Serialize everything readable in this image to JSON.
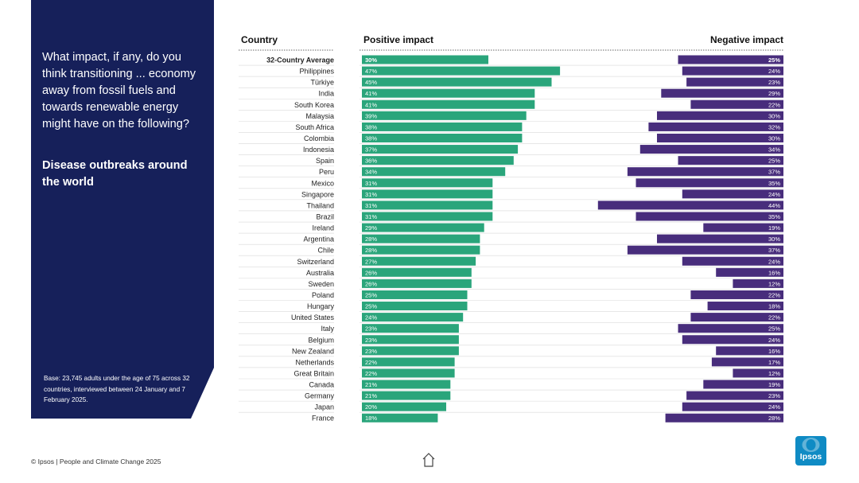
{
  "panel": {
    "question": "What impact, if any, do you think transitioning ... economy away from fossil fuels and towards renewable energy might have on the following?",
    "topic": "Disease outbreaks around the world",
    "base_note": "Base: 23,745 adults under the age of 75 across 32 countries, interviewed between 24 January and 7 February 2025."
  },
  "footer": {
    "text": "© Ipsos | People and Climate Change 2025"
  },
  "logo": {
    "text": "Ipsos"
  },
  "colors": {
    "positive": "#2aa57b",
    "negative": "#482d7c",
    "panel": "#16205a"
  },
  "chart_data": {
    "type": "bar",
    "orientation": "horizontal-diverging",
    "headers": {
      "country": "Country",
      "positive": "Positive impact",
      "negative": "Negative impact"
    },
    "categories": [
      "32-Country Average",
      "Philippines",
      "Türkiye",
      "India",
      "South Korea",
      "Malaysia",
      "South Africa",
      "Colombia",
      "Indonesia",
      "Spain",
      "Peru",
      "Mexico",
      "Singapore",
      "Thailand",
      "Brazil",
      "Ireland",
      "Argentina",
      "Chile",
      "Switzerland",
      "Australia",
      "Sweden",
      "Poland",
      "Hungary",
      "United States",
      "Italy",
      "Belgium",
      "New Zealand",
      "Netherlands",
      "Great Britain",
      "Canada",
      "Germany",
      "Japan",
      "France"
    ],
    "series": [
      {
        "name": "Positive impact",
        "values": [
          30,
          47,
          45,
          41,
          41,
          39,
          38,
          38,
          37,
          36,
          34,
          31,
          31,
          31,
          31,
          29,
          28,
          28,
          27,
          26,
          26,
          25,
          25,
          24,
          23,
          23,
          23,
          22,
          22,
          21,
          21,
          20,
          18
        ]
      },
      {
        "name": "Negative impact",
        "values": [
          25,
          24,
          23,
          29,
          22,
          30,
          32,
          30,
          34,
          25,
          37,
          35,
          24,
          44,
          35,
          19,
          30,
          37,
          24,
          16,
          12,
          22,
          18,
          22,
          25,
          24,
          16,
          17,
          12,
          19,
          23,
          24,
          28
        ]
      }
    ],
    "value_format": "{v}%",
    "highlight_first": true
  }
}
